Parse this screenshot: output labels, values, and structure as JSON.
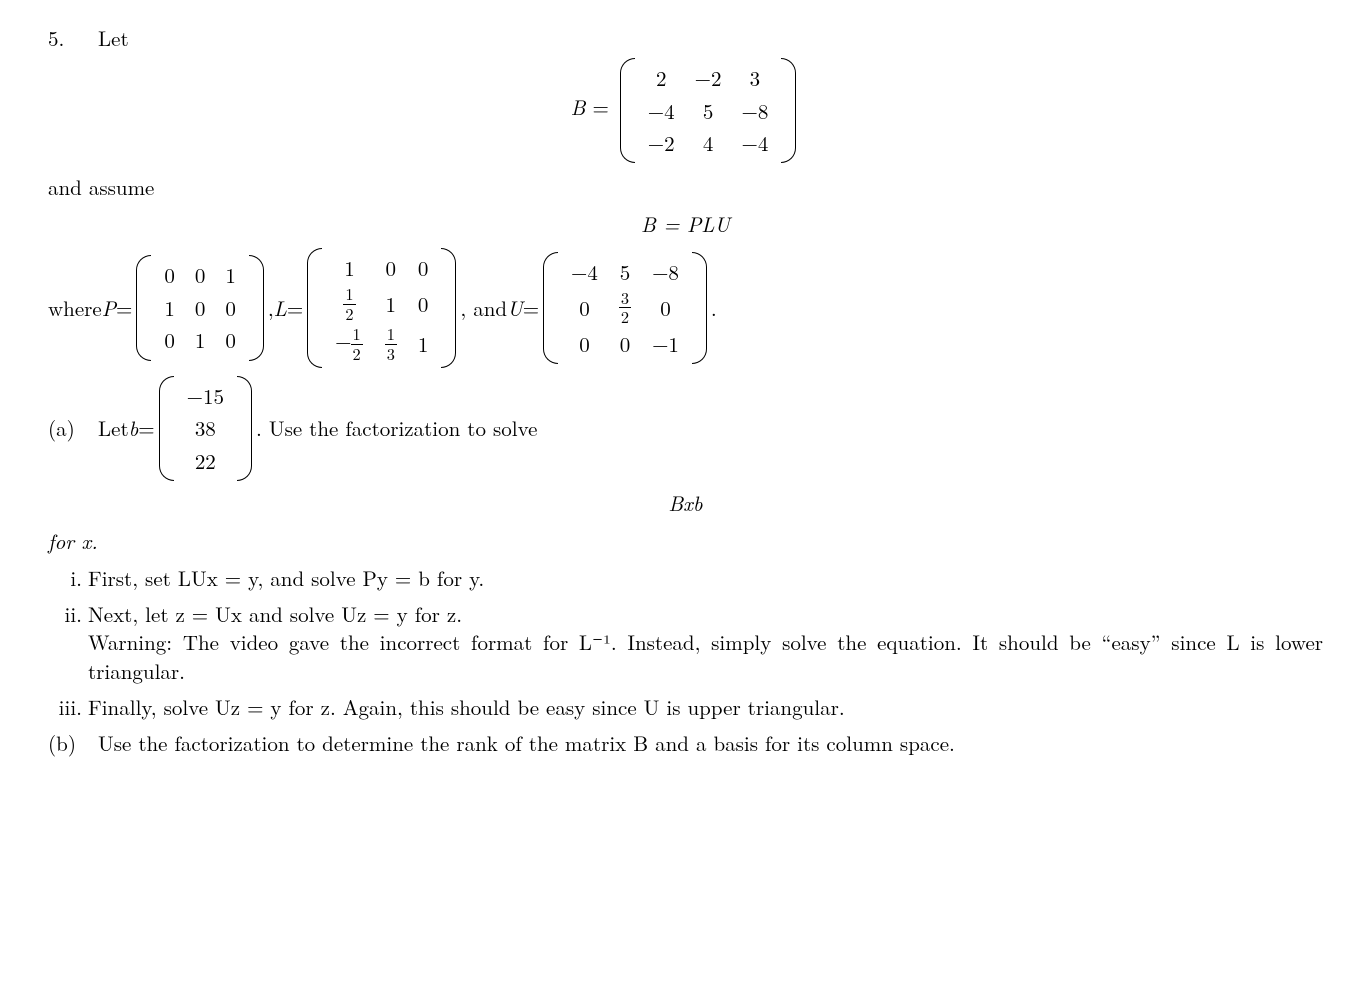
{
  "problem": {
    "number": "5.",
    "intro": "Let",
    "B_label": "B",
    "equals": " = ",
    "B": {
      "rows": [
        [
          "2",
          "−2",
          "3"
        ],
        [
          "−4",
          "5",
          "−8"
        ],
        [
          "−2",
          "4",
          "−4"
        ]
      ]
    },
    "assume_text": "and assume",
    "B_eq_PLU": "B = PLU",
    "where_text": "where ",
    "P_label": "P",
    "P": {
      "rows": [
        [
          "0",
          "0",
          "1"
        ],
        [
          "1",
          "0",
          "0"
        ],
        [
          "0",
          "1",
          "0"
        ]
      ]
    },
    "comma1": ", ",
    "L_label": "L",
    "L": {
      "rows": [
        [
          "1",
          "0",
          "0"
        ],
        [
          {
            "frac": [
              "1",
              "2"
            ]
          },
          "1",
          "0"
        ],
        [
          {
            "neg": true,
            "frac": [
              "1",
              "2"
            ]
          },
          {
            "frac": [
              "1",
              "3"
            ]
          },
          "1"
        ]
      ]
    },
    "comma2": ", and ",
    "U_label": "U",
    "U": {
      "rows": [
        [
          "−4",
          "5",
          "−8"
        ],
        [
          "0",
          {
            "frac": [
              "3",
              "2"
            ]
          },
          "0"
        ],
        [
          "0",
          "0",
          "−1"
        ]
      ]
    },
    "period": "."
  },
  "part_a": {
    "label": "(a)",
    "let_b": "Let ",
    "b_label": "b",
    "b": {
      "rows": [
        [
          "−15"
        ],
        [
          "38"
        ],
        [
          "22"
        ]
      ]
    },
    "after_b": ". Use the factorization to solve",
    "Bxb": "Bxb",
    "for_x": "for x.",
    "steps": {
      "i": {
        "label": "i.",
        "text": "First, set LUx = y, and solve Py = b for y."
      },
      "ii": {
        "label": "ii.",
        "line1": "Next, let z = Ux and solve Uz = y for z.",
        "warn": "Warning: The video gave the incorrect format for L⁻¹. Instead, simply solve the equation. It should be “easy” since L is lower triangular."
      },
      "iii": {
        "label": "iii.",
        "text": "Finally, solve Uz = y for z. Again, this should be easy since U is upper triangular."
      }
    }
  },
  "part_b": {
    "label": "(b)",
    "text": "Use the factorization to determine the rank of the matrix B and a basis for its column space."
  },
  "style": {
    "text_color": "#000000",
    "background_color": "#ffffff",
    "font_size_pt": 16
  }
}
